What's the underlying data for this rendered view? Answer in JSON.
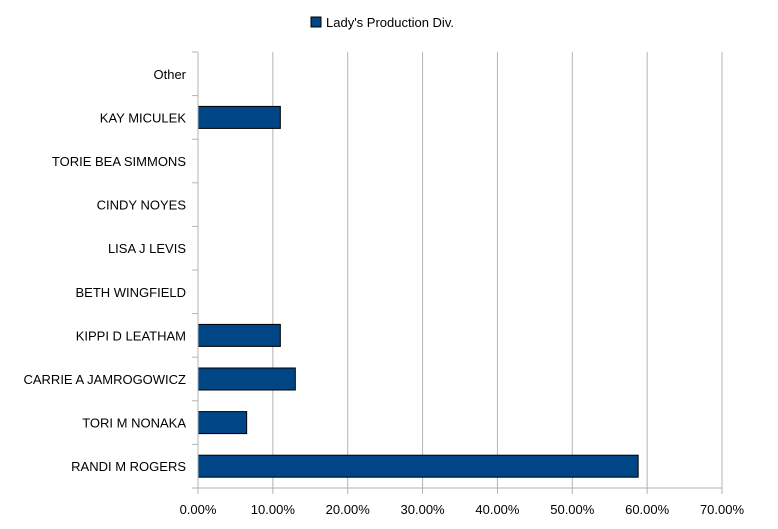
{
  "chart_data": {
    "type": "bar",
    "orientation": "horizontal",
    "categories": [
      "RANDI M ROGERS",
      "TORI M NONAKA",
      "CARRIE A JAMROGOWICZ",
      "KIPPI D LEATHAM",
      "BETH WINGFIELD",
      "LISA J LEVIS",
      "CINDY NOYES",
      "TORIE BEA SIMMONS",
      "KAY MICULEK",
      "Other"
    ],
    "series": [
      {
        "name": "Lady's Production Div.",
        "values": [
          0.588,
          0.065,
          0.13,
          0.11,
          0,
          0,
          0,
          0,
          0.11,
          0
        ]
      }
    ],
    "xlim": [
      0,
      0.7
    ],
    "xticks": [
      0,
      0.1,
      0.2,
      0.3,
      0.4,
      0.5,
      0.6,
      0.7
    ],
    "xtick_labels": [
      "0.00%",
      "10.00%",
      "20.00%",
      "30.00%",
      "40.00%",
      "50.00%",
      "60.00%",
      "70.00%"
    ],
    "grid": true,
    "legend_position": "top",
    "colors": {
      "bar": "#004586",
      "bar_stroke": "#000000",
      "grid": "#b3b3b3",
      "axis": "#b3b3b3"
    }
  }
}
